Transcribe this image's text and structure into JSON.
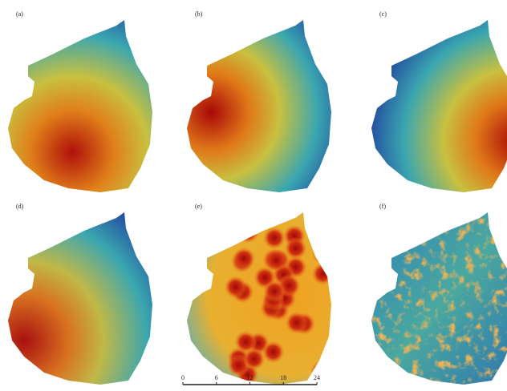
{
  "panels": [
    {
      "label": "(a)"
    },
    {
      "label": "(b)"
    },
    {
      "label": "(c)"
    },
    {
      "label": "(d)"
    },
    {
      "label": "(e)"
    },
    {
      "label": "(f)"
    }
  ],
  "scale_bar": {
    "ticks": [
      0,
      6,
      12,
      18,
      24
    ]
  }
}
